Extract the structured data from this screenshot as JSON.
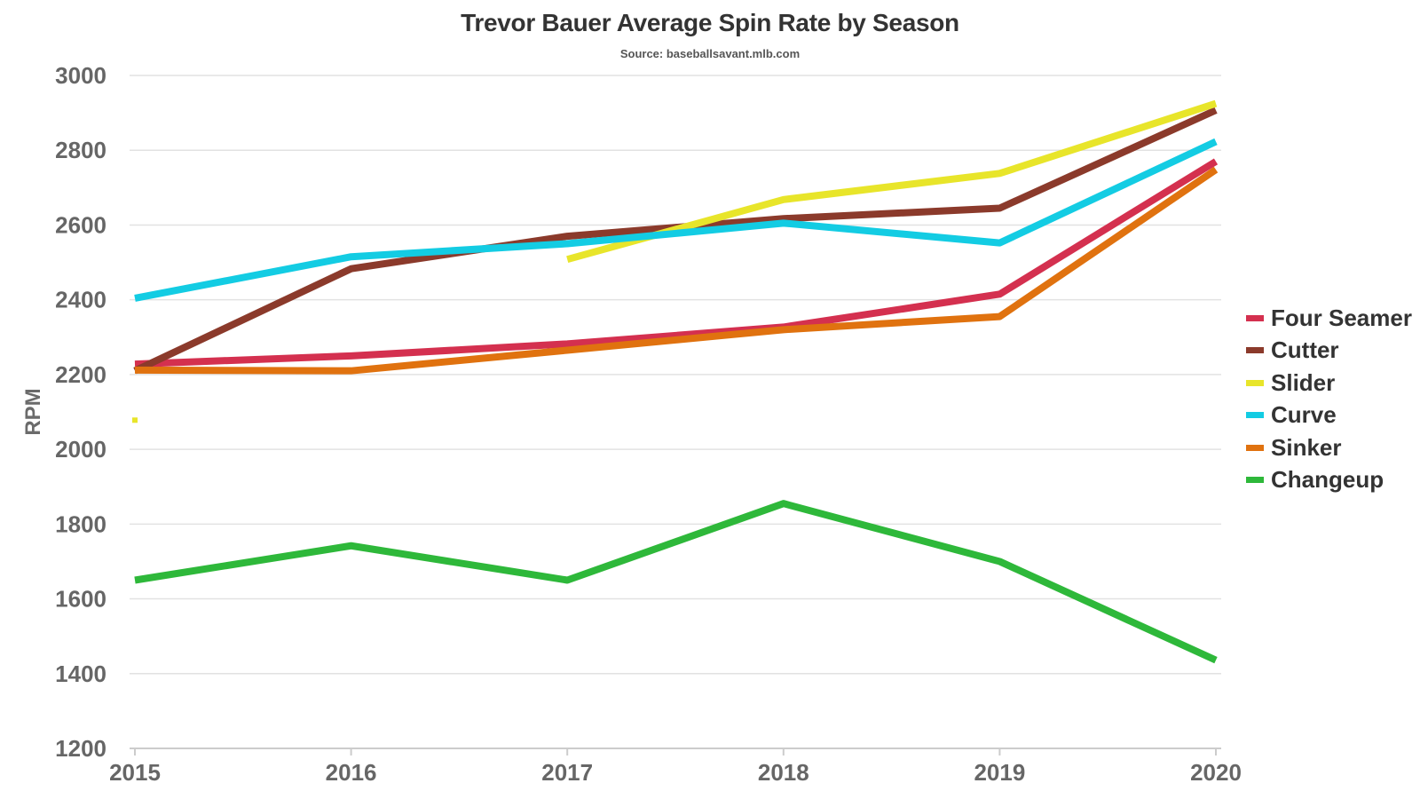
{
  "chart_data": {
    "type": "line",
    "title": "Trevor Bauer Average Spin Rate by Season",
    "subtitle": "Source: baseballsavant.mlb.com",
    "xlabel": "",
    "ylabel": "RPM",
    "x": [
      "2015",
      "2016",
      "2017",
      "2018",
      "2019",
      "2020"
    ],
    "ylim": [
      1200,
      3000
    ],
    "yticks": [
      1200,
      1400,
      1600,
      1800,
      2000,
      2200,
      2400,
      2600,
      2800,
      3000
    ],
    "grid": "horizontal",
    "legend_position": "right",
    "series": [
      {
        "name": "Four Seamer",
        "color": "#d4304f",
        "values": [
          2228,
          2250,
          2282,
          2327,
          2415,
          2770
        ]
      },
      {
        "name": "Cutter",
        "color": "#8b3a2b",
        "values": [
          2210,
          2483,
          2570,
          2617,
          2645,
          2907
        ]
      },
      {
        "name": "Slider",
        "color": "#e8e52a",
        "values": [
          2078,
          null,
          2508,
          2668,
          2738,
          2925
        ]
      },
      {
        "name": "Curve",
        "color": "#13cce3",
        "values": [
          2404,
          2515,
          2550,
          2605,
          2552,
          2823
        ]
      },
      {
        "name": "Sinker",
        "color": "#e0720f",
        "values": [
          2212,
          2210,
          2265,
          2320,
          2355,
          2748
        ]
      },
      {
        "name": "Changeup",
        "color": "#2eb83a",
        "values": [
          1650,
          1742,
          1650,
          1855,
          1700,
          1436
        ]
      }
    ]
  }
}
